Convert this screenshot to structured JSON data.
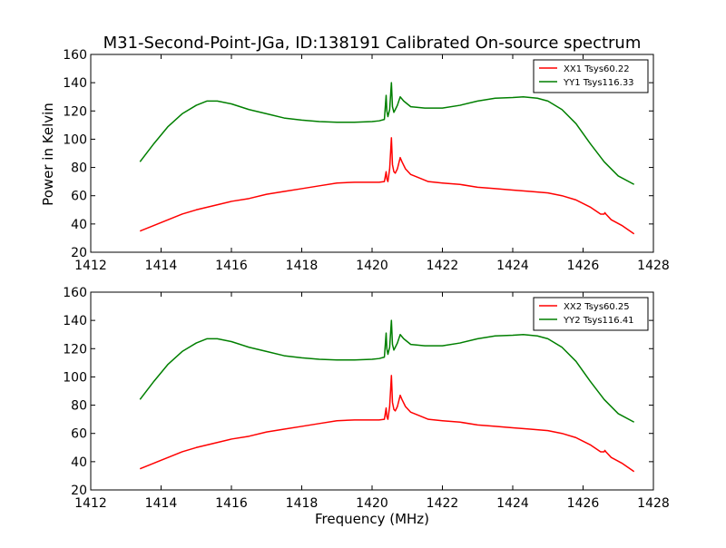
{
  "figure": {
    "title": "M31-Second-Point-JGa, ID:138191 Calibrated On-source spectrum",
    "xlabel": "Frequency (MHz)",
    "ylabel": "Power in Kelvin"
  },
  "colors": {
    "red": "#ff0000",
    "green": "#007f00"
  },
  "chart_data": [
    {
      "type": "line",
      "title": "M31-Second-Point-JGa, ID:138191 Calibrated On-source spectrum",
      "xlabel": "",
      "ylabel": "Power in Kelvin",
      "xlim": [
        1412,
        1428
      ],
      "ylim": [
        20,
        160
      ],
      "xticks": [
        1412,
        1414,
        1416,
        1418,
        1420,
        1422,
        1424,
        1426,
        1428
      ],
      "yticks": [
        20,
        40,
        60,
        80,
        100,
        120,
        140,
        160
      ],
      "grid": false,
      "legend": "top-right",
      "series": [
        {
          "name": "XX1 Tsys60.22",
          "color": "#ff0000",
          "x": [
            1413.4,
            1413.8,
            1414.2,
            1414.6,
            1415.0,
            1415.5,
            1416.0,
            1416.5,
            1417.0,
            1417.5,
            1418.0,
            1418.5,
            1419.0,
            1419.5,
            1420.0,
            1420.2,
            1420.35,
            1420.4,
            1420.42,
            1420.45,
            1420.5,
            1420.55,
            1420.58,
            1420.62,
            1420.66,
            1420.72,
            1420.8,
            1420.85,
            1420.95,
            1421.1,
            1421.3,
            1421.6,
            1422.0,
            1422.5,
            1423.0,
            1423.5,
            1424.0,
            1424.5,
            1425.0,
            1425.4,
            1425.8,
            1426.2,
            1426.5,
            1426.6,
            1426.62,
            1426.65,
            1426.8,
            1427.1,
            1427.45
          ],
          "values": [
            35,
            39,
            43,
            47,
            50,
            53,
            56,
            58,
            61,
            63,
            65,
            67,
            69,
            69.5,
            69.5,
            69.5,
            70,
            77,
            72,
            70,
            79,
            101,
            82,
            77,
            76,
            79,
            87,
            84,
            79,
            75,
            73,
            70,
            69,
            68,
            66,
            65,
            64,
            63,
            62,
            60,
            57,
            52,
            47,
            47,
            48,
            47,
            43,
            39,
            33
          ]
        },
        {
          "name": "YY1 Tsys116.33",
          "color": "#007f00",
          "x": [
            1413.4,
            1413.8,
            1414.2,
            1414.6,
            1415.0,
            1415.3,
            1415.6,
            1416.0,
            1416.5,
            1417.0,
            1417.5,
            1418.0,
            1418.5,
            1419.0,
            1419.5,
            1420.0,
            1420.2,
            1420.35,
            1420.4,
            1420.42,
            1420.45,
            1420.5,
            1420.55,
            1420.58,
            1420.62,
            1420.66,
            1420.72,
            1420.8,
            1420.9,
            1421.1,
            1421.5,
            1422.0,
            1422.5,
            1423.0,
            1423.5,
            1424.0,
            1424.3,
            1424.7,
            1425.0,
            1425.4,
            1425.8,
            1426.2,
            1426.6,
            1427.0,
            1427.45
          ],
          "values": [
            84,
            97,
            109,
            118,
            124,
            127,
            127,
            125,
            121,
            118,
            115,
            113.5,
            112.5,
            112,
            112,
            112.5,
            113,
            114,
            131,
            120,
            116,
            121,
            140,
            123,
            119,
            121,
            124,
            130,
            127,
            123,
            122,
            122,
            124,
            127,
            129,
            129.5,
            130,
            129,
            127,
            121,
            111,
            97,
            84,
            74,
            68
          ]
        }
      ]
    },
    {
      "type": "line",
      "title": "",
      "xlabel": "Frequency (MHz)",
      "ylabel": "",
      "xlim": [
        1412,
        1428
      ],
      "ylim": [
        20,
        160
      ],
      "xticks": [
        1412,
        1414,
        1416,
        1418,
        1420,
        1422,
        1424,
        1426,
        1428
      ],
      "yticks": [
        20,
        40,
        60,
        80,
        100,
        120,
        140,
        160
      ],
      "grid": false,
      "legend": "top-right",
      "series": [
        {
          "name": "XX2 Tsys60.25",
          "color": "#ff0000",
          "x": [
            1413.4,
            1413.8,
            1414.2,
            1414.6,
            1415.0,
            1415.5,
            1416.0,
            1416.5,
            1417.0,
            1417.5,
            1418.0,
            1418.5,
            1419.0,
            1419.5,
            1420.0,
            1420.2,
            1420.35,
            1420.4,
            1420.42,
            1420.45,
            1420.5,
            1420.55,
            1420.58,
            1420.62,
            1420.66,
            1420.72,
            1420.8,
            1420.85,
            1420.95,
            1421.1,
            1421.3,
            1421.6,
            1422.0,
            1422.5,
            1423.0,
            1423.5,
            1424.0,
            1424.5,
            1425.0,
            1425.4,
            1425.8,
            1426.2,
            1426.5,
            1426.6,
            1426.62,
            1426.65,
            1426.8,
            1427.1,
            1427.45
          ],
          "values": [
            35,
            39,
            43,
            47,
            50,
            53,
            56,
            58,
            61,
            63,
            65,
            67,
            69,
            69.5,
            69.5,
            69.5,
            70,
            78,
            72,
            70,
            79,
            101,
            82,
            77,
            76,
            79,
            87,
            84,
            79,
            75,
            73,
            70,
            69,
            68,
            66,
            65,
            64,
            63,
            62,
            60,
            57,
            52,
            47,
            47,
            48,
            47,
            43,
            39,
            33
          ]
        },
        {
          "name": "YY2 Tsys116.41",
          "color": "#007f00",
          "x": [
            1413.4,
            1413.8,
            1414.2,
            1414.6,
            1415.0,
            1415.3,
            1415.6,
            1416.0,
            1416.5,
            1417.0,
            1417.5,
            1418.0,
            1418.5,
            1419.0,
            1419.5,
            1420.0,
            1420.2,
            1420.35,
            1420.4,
            1420.42,
            1420.45,
            1420.5,
            1420.55,
            1420.58,
            1420.62,
            1420.66,
            1420.72,
            1420.8,
            1420.9,
            1421.1,
            1421.5,
            1422.0,
            1422.5,
            1423.0,
            1423.5,
            1424.0,
            1424.3,
            1424.7,
            1425.0,
            1425.4,
            1425.8,
            1426.2,
            1426.6,
            1427.0,
            1427.45
          ],
          "values": [
            84,
            97,
            109,
            118,
            124,
            127,
            127,
            125,
            121,
            118,
            115,
            113.5,
            112.5,
            112,
            112,
            112.5,
            113,
            114,
            131,
            120,
            116,
            121,
            140,
            123,
            119,
            121,
            124,
            130,
            127,
            123,
            122,
            122,
            124,
            127,
            129,
            129.5,
            130,
            129,
            127,
            121,
            111,
            97,
            84,
            74,
            68
          ]
        }
      ]
    }
  ]
}
